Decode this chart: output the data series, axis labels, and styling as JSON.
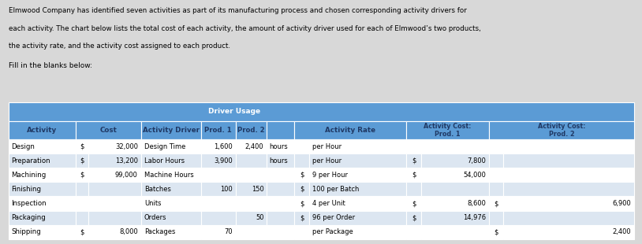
{
  "title_text": "Elmwood Company has identified seven activities as part of its manufacturing process and chosen corresponding activity drivers for\neach activity. The chart below lists the total cost of each activity, the amount of activity driver used for each of Elmwood’s two products,\nthe activity rate, and the activity cost assigned to each product.",
  "subtitle_text": "Fill in the blanks below:",
  "bg_color": "#d8d8d8",
  "table_bg": "#f0f0f0",
  "header_bg": "#5b9bd5",
  "row_colors": [
    "#dce6f1",
    "#bdd7ee"
  ],
  "white_cell": "#ffffff",
  "header_text_color": "#1f3864",
  "fig_width": 8.14,
  "fig_height": 3.1,
  "dpi": 100,
  "rows": [
    [
      "Design",
      "$",
      "32,000",
      "Design Time",
      "1,600",
      "2,400",
      "hours",
      "",
      "per Hour",
      "",
      "",
      "",
      ""
    ],
    [
      "Preparation",
      "$",
      "13,200",
      "Labor Hours",
      "3,900",
      "",
      "hours",
      "",
      "per Hour",
      "$",
      "7,800",
      "",
      ""
    ],
    [
      "Machining",
      "$",
      "99,000",
      "Machine Hours",
      "",
      "",
      "",
      "$",
      "9 per Hour",
      "$",
      "54,000",
      "",
      ""
    ],
    [
      "Finishing",
      "",
      "",
      "Batches",
      "100",
      "150",
      "",
      "$",
      "100 per Batch",
      "",
      "",
      "",
      ""
    ],
    [
      "Inspection",
      "",
      "",
      "Units",
      "",
      "",
      "",
      "$",
      "4 per Unit",
      "$",
      "8,600",
      "$",
      "6,900"
    ],
    [
      "Packaging",
      "",
      "",
      "Orders",
      "",
      "50",
      "",
      "$",
      "96 per Order",
      "$",
      "14,976",
      "",
      ""
    ],
    [
      "Shipping",
      "$",
      "8,000",
      "Packages",
      "70",
      "",
      "",
      "",
      "per Package",
      "",
      "",
      "$",
      "2,400"
    ]
  ]
}
